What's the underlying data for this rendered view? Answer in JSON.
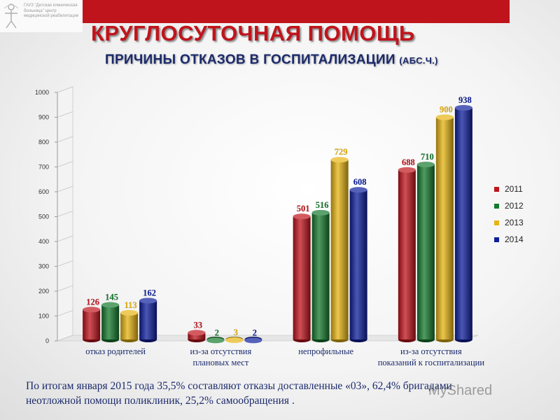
{
  "header": {
    "logo_text": "ГАУЗ \"Детская клиническая больница\" центр медицинской реабилитации",
    "title": "КРУГЛОСУТОЧНАЯ ПОМОЩЬ",
    "subtitle": "ПРИЧИНЫ ОТКАЗОВ В ГОСПИТАЛИЗАЦИИ",
    "subtitle_unit": "(АБС.Ч.)",
    "bar_color": "#c0141c"
  },
  "chart_data": {
    "type": "bar",
    "categories": [
      [
        "отказ родителей"
      ],
      [
        "из-за отсутствия",
        "плановых мест"
      ],
      [
        "непрофильные"
      ],
      [
        "из-за отсутствия",
        "показаний к госпитализации"
      ]
    ],
    "series": [
      {
        "name": "2011",
        "color": "#c0141c",
        "values": [
          126,
          33,
          501,
          688
        ]
      },
      {
        "name": "2012",
        "color": "#157a2e",
        "values": [
          145,
          2,
          516,
          710
        ]
      },
      {
        "name": "2013",
        "color": "#e6b412",
        "values": [
          113,
          3,
          729,
          900
        ]
      },
      {
        "name": "2014",
        "color": "#0e1f9c",
        "values": [
          162,
          2,
          608,
          938
        ]
      }
    ],
    "ylim": [
      0,
      1000
    ],
    "yticks": [
      0,
      100,
      200,
      300,
      400,
      500,
      600,
      700,
      800,
      900,
      1000
    ],
    "legend_position": "right",
    "grid": false
  },
  "footnote": {
    "line1": "По итогам января 2015 года 35,5%  составляют отказы доставленные «03», 62,4% бригадами",
    "line2": "неотложной помощи поликлиник, 25,2% самообращения ."
  },
  "watermark": "MyShared"
}
